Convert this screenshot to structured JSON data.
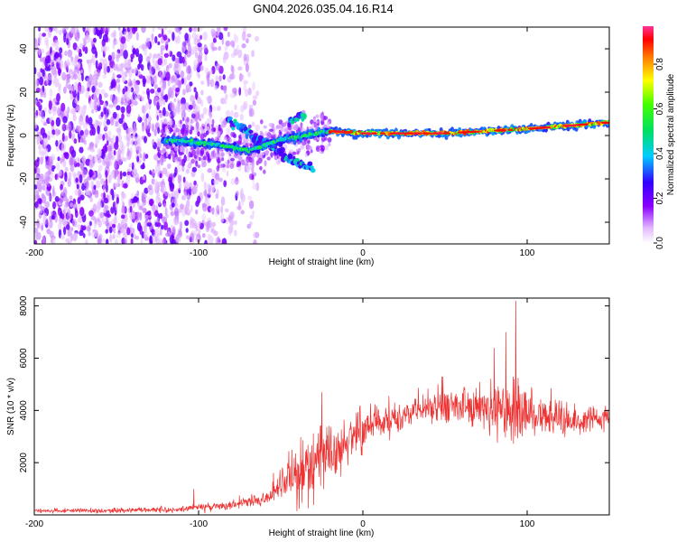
{
  "title": "GN04.2026.035.04.16.R14",
  "chart_data": [
    {
      "type": "heatmap",
      "title": "GN04.2026.035.04.16.R14",
      "xlabel": "Height of straight line (km)",
      "ylabel": "Frequency (Hz)",
      "xlim": [
        -200,
        150
      ],
      "ylim": [
        -50,
        50
      ],
      "xticks": [
        -200,
        -100,
        0,
        100
      ],
      "xtick_labels": [
        "-200",
        "-100",
        "0",
        "100"
      ],
      "yticks": [
        -40,
        -20,
        0,
        20,
        40
      ],
      "ytick_labels": [
        "-40",
        "-20",
        "0",
        "20",
        "40"
      ],
      "colorbar": {
        "label": "Normalized spectral amplitude",
        "range": [
          0.0,
          0.97
        ],
        "ticks": [
          0.0,
          0.2,
          0.4,
          0.6,
          0.8
        ],
        "tick_labels": [
          "0.0",
          "0.2",
          "0.4",
          "0.6",
          "0.8"
        ],
        "colormap": "rainbow (violet-blue-cyan-green-yellow-red-magenta)"
      },
      "features": {
        "broadband_noise_x_range": [
          -200,
          -70
        ],
        "main_track": [
          {
            "x": -120,
            "f": -2
          },
          {
            "x": -90,
            "f": -4
          },
          {
            "x": -70,
            "f": -7
          },
          {
            "x": -50,
            "f": -2
          },
          {
            "x": -35,
            "f": 0
          },
          {
            "x": -20,
            "f": 2
          },
          {
            "x": 0,
            "f": 1
          },
          {
            "x": 50,
            "f": 1
          },
          {
            "x": 100,
            "f": 3
          },
          {
            "x": 150,
            "f": 6
          }
        ],
        "secondary_track": [
          {
            "x": -82,
            "f": 7
          },
          {
            "x": -55,
            "f": -5
          },
          {
            "x": -42,
            "f": -12
          },
          {
            "x": -30,
            "f": -15
          }
        ],
        "secondary_track_upper": [
          {
            "x": -45,
            "f": 6
          },
          {
            "x": -35,
            "f": 10
          }
        ]
      }
    },
    {
      "type": "line",
      "xlabel": "Height of straight line (km)",
      "ylabel": "SNR (10 * v/v)",
      "xlim": [
        -200,
        150
      ],
      "ylim": [
        0,
        8300
      ],
      "xticks": [
        -200,
        -100,
        0,
        100
      ],
      "xtick_labels": [
        "-200",
        "-100",
        "0",
        "100"
      ],
      "yticks": [
        2000,
        4000,
        6000,
        8000
      ],
      "ytick_labels": [
        "2000",
        "4000",
        "6000",
        "8000"
      ],
      "color": "#ee3333",
      "envelope": {
        "x": [
          -200,
          -150,
          -110,
          -100,
          -80,
          -60,
          -50,
          -40,
          -30,
          -20,
          -10,
          0,
          20,
          40,
          60,
          80,
          95,
          110,
          130,
          150
        ],
        "mean": [
          150,
          170,
          200,
          280,
          350,
          600,
          1100,
          1700,
          2000,
          2400,
          2800,
          3200,
          3700,
          4100,
          4200,
          4000,
          3900,
          3700,
          3600,
          3700
        ],
        "amplitude": [
          100,
          120,
          140,
          220,
          200,
          400,
          900,
          1600,
          1900,
          1600,
          1200,
          1000,
          700,
          800,
          1000,
          1300,
          1800,
          1100,
          700,
          500
        ]
      },
      "peaks": [
        {
          "x": -103,
          "y": 1000
        },
        {
          "x": -25,
          "y": 4700
        },
        {
          "x": 80,
          "y": 6400
        },
        {
          "x": 93,
          "y": 8200
        },
        {
          "x": 87,
          "y": 7000
        }
      ]
    }
  ]
}
